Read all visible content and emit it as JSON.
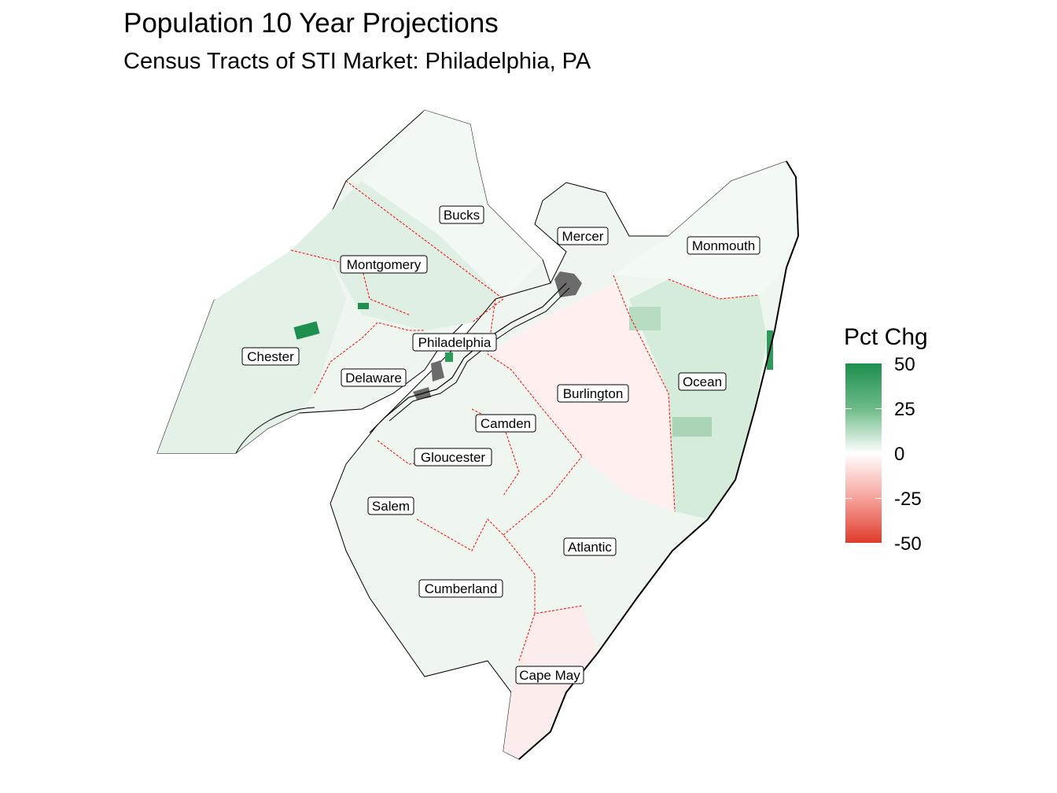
{
  "header": {
    "title": "Population 10 Year Projections",
    "subtitle": "Census Tracts of STI Market: Philadelphia, PA"
  },
  "legend": {
    "title": "Pct Chg",
    "ticks": [
      "50",
      "25",
      "0",
      "-25",
      "-50"
    ],
    "colors": {
      "high": "#1e8f4e",
      "mid": "#ffffff",
      "low": "#e03b2c"
    }
  },
  "map": {
    "counties": [
      {
        "key": "bucks",
        "name": "Bucks"
      },
      {
        "key": "mercer",
        "name": "Mercer"
      },
      {
        "key": "monmouth",
        "name": "Monmouth"
      },
      {
        "key": "montgomery",
        "name": "Montgomery"
      },
      {
        "key": "philadelphia",
        "name": "Philadelphia"
      },
      {
        "key": "chester",
        "name": "Chester"
      },
      {
        "key": "delaware",
        "name": "Delaware"
      },
      {
        "key": "ocean",
        "name": "Ocean"
      },
      {
        "key": "burlington",
        "name": "Burlington"
      },
      {
        "key": "camden",
        "name": "Camden"
      },
      {
        "key": "gloucester",
        "name": "Gloucester"
      },
      {
        "key": "salem",
        "name": "Salem"
      },
      {
        "key": "atlantic",
        "name": "Atlantic"
      },
      {
        "key": "cumberland",
        "name": "Cumberland"
      },
      {
        "key": "cape_may",
        "name": "Cape May"
      }
    ],
    "colors": {
      "boundary": "#000000",
      "county_border": "#ff0000",
      "no_data": "#6b6b6b"
    }
  }
}
